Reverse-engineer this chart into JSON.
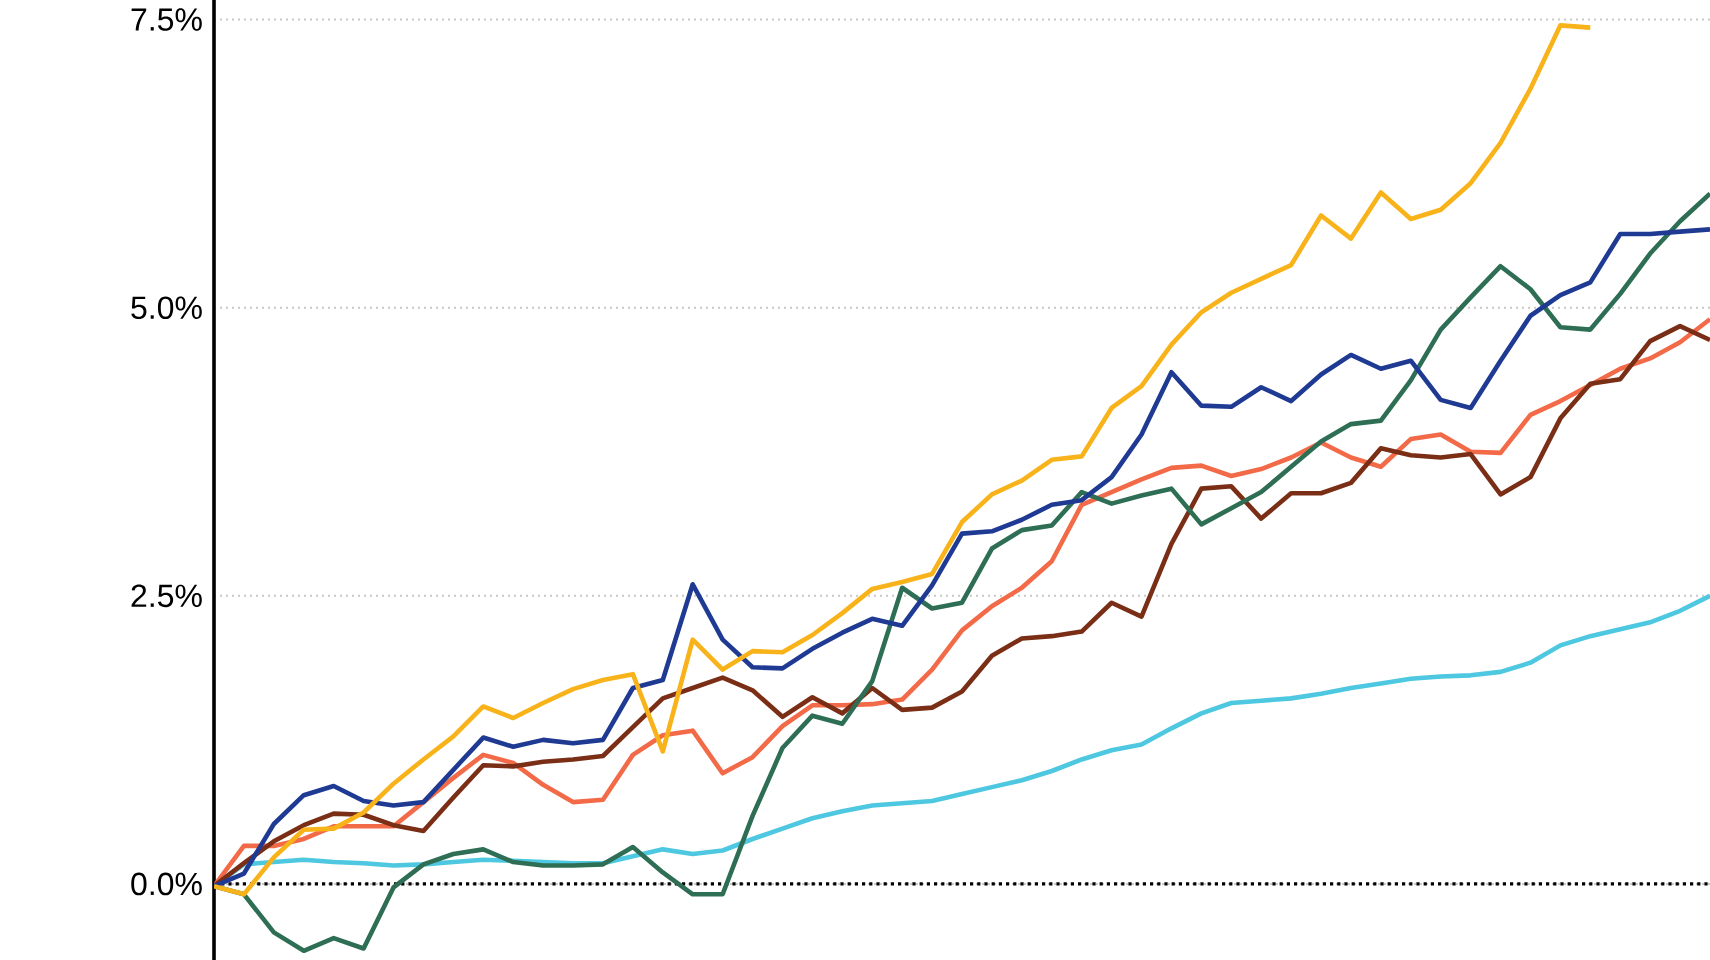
{
  "chart_data": {
    "type": "line",
    "categories": [
      null,
      null,
      null,
      null,
      null,
      null,
      null,
      null,
      null,
      null,
      null,
      null,
      null,
      null,
      null,
      null,
      null,
      null,
      null,
      null,
      null,
      null,
      null,
      null,
      null,
      null,
      null,
      null,
      null,
      null,
      null,
      null,
      null,
      null,
      null,
      null,
      null,
      null,
      null,
      null,
      null,
      null,
      null,
      null,
      null,
      null,
      null,
      null,
      null,
      null,
      null
    ],
    "ylim": [
      -0.66,
      7.67
    ],
    "yticks": [
      {
        "value": 0,
        "label": "0.0%"
      },
      {
        "value": 2.5,
        "label": "2.5%"
      },
      {
        "value": 5,
        "label": "5.0%"
      },
      {
        "value": 7.5,
        "label": "7.5%"
      }
    ],
    "grid": "y",
    "marker": "none",
    "line_style": "solid",
    "ref_lines": [
      {
        "axis": "y",
        "value": 0,
        "color": "#000000",
        "line_style": "dotted"
      }
    ],
    "series": [
      {
        "color": "#4ec8e0",
        "values": [
          -0.02,
          0.17,
          0.19,
          0.21,
          0.19,
          0.18,
          0.16,
          0.17,
          0.19,
          0.21,
          0.2,
          0.19,
          0.18,
          0.18,
          0.24,
          0.3,
          0.26,
          0.29,
          0.39,
          0.48,
          0.57,
          0.63,
          0.68,
          0.7,
          0.72,
          0.78,
          0.84,
          0.9,
          0.98,
          1.08,
          1.16,
          1.21,
          1.35,
          1.48,
          1.57,
          1.59,
          1.61,
          1.65,
          1.7,
          1.74,
          1.78,
          1.8,
          1.81,
          1.84,
          1.92,
          2.07,
          2.15,
          2.21,
          2.27,
          2.37,
          2.5
        ]
      },
      {
        "color": "#f26a47",
        "values": [
          -0.02,
          0.33,
          0.33,
          0.39,
          0.5,
          0.5,
          0.5,
          0.71,
          0.92,
          1.12,
          1.05,
          0.86,
          0.71,
          0.73,
          1.12,
          1.29,
          1.33,
          0.96,
          1.1,
          1.37,
          1.55,
          1.55,
          1.56,
          1.6,
          1.86,
          2.2,
          2.41,
          2.57,
          2.8,
          3.29,
          3.4,
          3.51,
          3.61,
          3.63,
          3.54,
          3.6,
          3.7,
          3.83,
          3.7,
          3.62,
          3.86,
          3.9,
          3.75,
          3.74,
          4.07,
          4.19,
          4.33,
          4.47,
          4.56,
          4.7,
          4.9
        ]
      },
      {
        "color": "#7a2e16",
        "values": [
          -0.02,
          0.18,
          0.37,
          0.51,
          0.61,
          0.6,
          0.51,
          0.46,
          0.75,
          1.03,
          1.02,
          1.06,
          1.08,
          1.11,
          1.36,
          1.61,
          1.7,
          1.79,
          1.68,
          1.45,
          1.62,
          1.48,
          1.7,
          1.51,
          1.53,
          1.67,
          1.98,
          2.13,
          2.15,
          2.19,
          2.44,
          2.32,
          2.95,
          3.43,
          3.45,
          3.17,
          3.39,
          3.39,
          3.48,
          3.78,
          3.72,
          3.7,
          3.73,
          3.38,
          3.53,
          4.04,
          4.34,
          4.38,
          4.71,
          4.84,
          4.72
        ]
      },
      {
        "color": "#2e6e55",
        "values": [
          -0.02,
          -0.09,
          -0.42,
          -0.58,
          -0.47,
          -0.56,
          -0.03,
          0.17,
          0.26,
          0.3,
          0.19,
          0.16,
          0.16,
          0.17,
          0.32,
          0.1,
          -0.09,
          -0.09,
          0.59,
          1.18,
          1.46,
          1.39,
          1.76,
          2.57,
          2.39,
          2.44,
          2.91,
          3.07,
          3.11,
          3.4,
          3.3,
          3.37,
          3.43,
          3.12,
          3.26,
          3.4,
          3.62,
          3.84,
          3.99,
          4.02,
          4.37,
          4.81,
          5.09,
          5.36,
          5.16,
          4.83,
          4.81,
          5.12,
          5.47,
          5.75,
          5.99
        ]
      },
      {
        "color": "#1f3a93",
        "values": [
          -0.02,
          0.09,
          0.52,
          0.77,
          0.85,
          0.72,
          0.68,
          0.71,
          0.99,
          1.27,
          1.19,
          1.25,
          1.22,
          1.25,
          1.7,
          1.77,
          2.6,
          2.12,
          1.88,
          1.87,
          2.04,
          2.18,
          2.3,
          2.24,
          2.59,
          3.04,
          3.06,
          3.16,
          3.29,
          3.33,
          3.53,
          3.9,
          4.44,
          4.15,
          4.14,
          4.31,
          4.19,
          4.42,
          4.59,
          4.47,
          4.54,
          4.2,
          4.13,
          4.54,
          4.93,
          5.11,
          5.22,
          5.64,
          5.64,
          5.66,
          5.68
        ]
      },
      {
        "color": "#f9b31a",
        "values": [
          -0.02,
          -0.09,
          0.23,
          0.47,
          0.48,
          0.62,
          0.87,
          1.08,
          1.28,
          1.54,
          1.44,
          1.57,
          1.69,
          1.77,
          1.82,
          1.15,
          2.12,
          1.86,
          2.02,
          2.01,
          2.16,
          2.35,
          2.56,
          2.62,
          2.69,
          3.14,
          3.38,
          3.5,
          3.68,
          3.71,
          4.13,
          4.32,
          4.68,
          4.96,
          5.13,
          5.25,
          5.37,
          5.8,
          5.6,
          6.0,
          5.77,
          5.85,
          6.08,
          6.43,
          6.9,
          7.45,
          7.43,
          null,
          null,
          null,
          null
        ]
      }
    ]
  }
}
